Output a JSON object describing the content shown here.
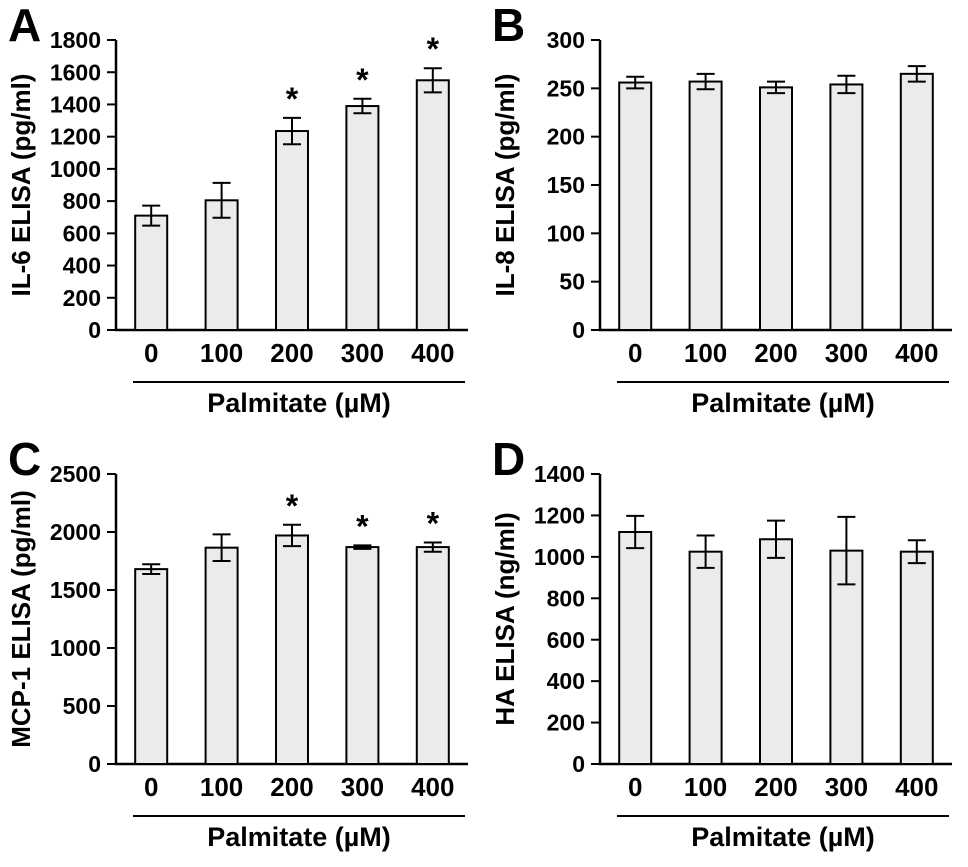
{
  "style": {
    "background": "#ffffff",
    "bar_fill": "#ebebeb",
    "bar_stroke": "#000000",
    "axis_color": "#000000",
    "text_color": "#000000"
  },
  "chart_data": [
    {
      "type": "bar",
      "panel": "A",
      "ylabel": "IL-6 ELISA (pg/ml)",
      "xlabel": "Palmitate (µM)",
      "categories": [
        "0",
        "100",
        "200",
        "300",
        "400"
      ],
      "values": [
        710,
        805,
        1235,
        1390,
        1550
      ],
      "errors": [
        62,
        108,
        82,
        45,
        75
      ],
      "significance": [
        "",
        "",
        "*",
        "*",
        "*"
      ],
      "ylim": [
        0,
        1800
      ],
      "ytick_step": 200,
      "grid": false,
      "legend": false
    },
    {
      "type": "bar",
      "panel": "B",
      "ylabel": "IL-8 ELISA (pg/ml)",
      "xlabel": "Palmitate (µM)",
      "categories": [
        "0",
        "100",
        "200",
        "300",
        "400"
      ],
      "values": [
        256,
        257,
        251,
        254,
        265
      ],
      "errors": [
        6,
        8,
        6,
        9,
        8
      ],
      "significance": [
        "",
        "",
        "",
        "",
        ""
      ],
      "ylim": [
        0,
        300
      ],
      "ytick_step": 50,
      "grid": false,
      "legend": false
    },
    {
      "type": "bar",
      "panel": "C",
      "ylabel": "MCP-1 ELISA (pg/ml)",
      "xlabel": "Palmitate (µM)",
      "categories": [
        "0",
        "100",
        "200",
        "300",
        "400"
      ],
      "values": [
        1680,
        1865,
        1970,
        1870,
        1870
      ],
      "errors": [
        42,
        115,
        92,
        15,
        40
      ],
      "significance": [
        "",
        "",
        "*",
        "*",
        "*"
      ],
      "ylim": [
        0,
        2500
      ],
      "ytick_step": 500,
      "grid": false,
      "legend": false
    },
    {
      "type": "bar",
      "panel": "D",
      "ylabel": "HA ELISA (ng/ml)",
      "xlabel": "Palmitate (µM)",
      "categories": [
        "0",
        "100",
        "200",
        "300",
        "400"
      ],
      "values": [
        1120,
        1025,
        1085,
        1030,
        1025
      ],
      "errors": [
        78,
        78,
        90,
        163,
        55
      ],
      "significance": [
        "",
        "",
        "",
        "",
        ""
      ],
      "ylim": [
        0,
        1400
      ],
      "ytick_step": 200,
      "grid": false,
      "legend": false
    }
  ]
}
